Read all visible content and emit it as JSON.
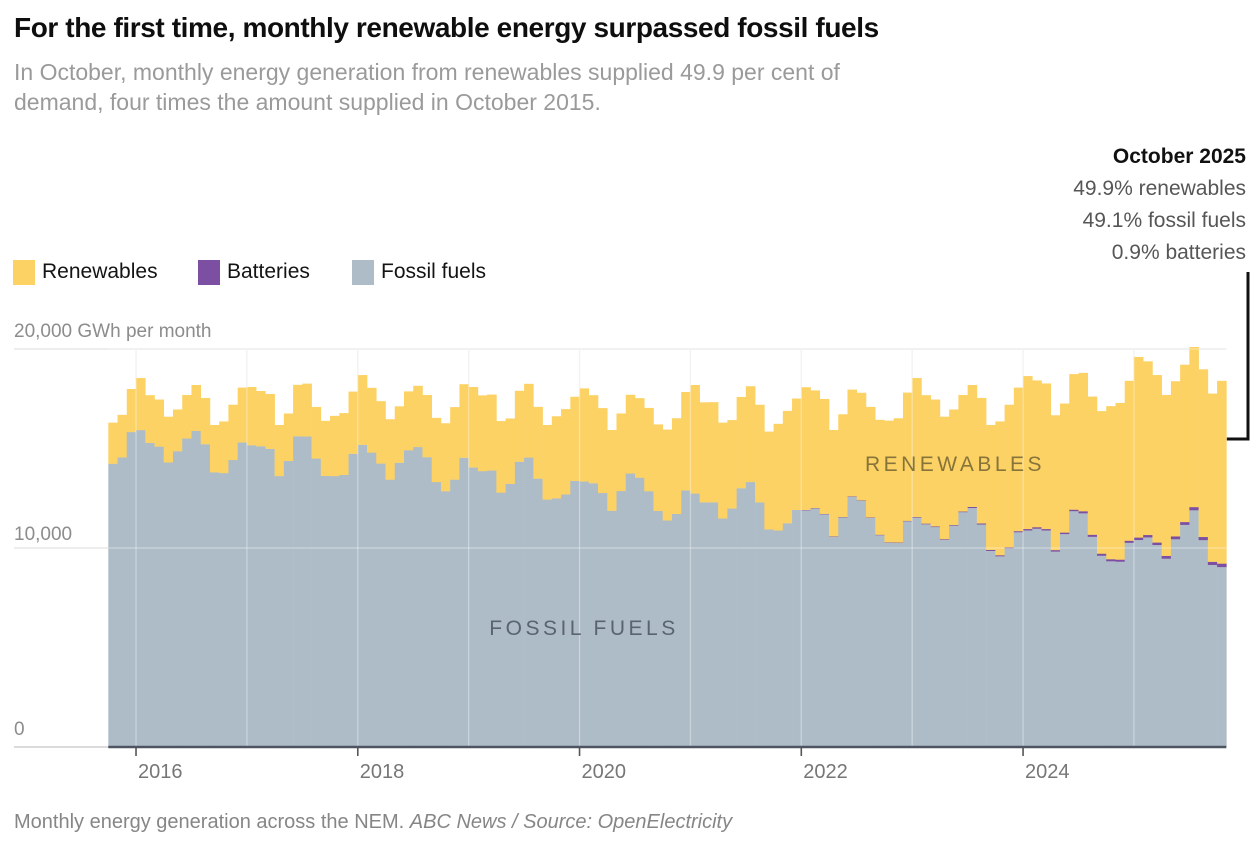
{
  "header": {
    "title": "For the first time, monthly renewable energy surpassed fossil fuels",
    "subtitle_lines": [
      "In October, monthly energy generation from renewables supplied 49.9 per cent of",
      "demand, four times the amount supplied in October 2015."
    ]
  },
  "annotation": {
    "title": "October 2025",
    "lines": [
      "49.9% renewables",
      "49.1% fossil fuels",
      "0.9% batteries"
    ]
  },
  "legend": [
    {
      "label": "Renewables",
      "color": "#fcd265"
    },
    {
      "label": "Batteries",
      "color": "#7d4fa3"
    },
    {
      "label": "Fossil fuels",
      "color": "#aebcc8"
    }
  ],
  "footer": {
    "caption": "Monthly energy generation across the NEM. ",
    "credit": "ABC News / Source: OpenElectricity"
  },
  "chart_data": {
    "type": "bar",
    "stacked": true,
    "x_range": {
      "start": "2015-10",
      "end": "2025-10",
      "months": 121
    },
    "x_ticks": [
      "2016",
      "2018",
      "2020",
      "2022",
      "2024"
    ],
    "y_axis": {
      "top_label": "20,000 GWh per month",
      "mid_label": "10,000",
      "zero_label": "0",
      "gridline_values": [
        20000,
        10000
      ],
      "ylim": [
        0,
        20500
      ]
    },
    "inner_labels": [
      {
        "text": "RENEWABLES",
        "color": "#87743a"
      },
      {
        "text": "FOSSIL FUELS",
        "color": "#5a6470"
      }
    ],
    "series": [
      {
        "name": "Fossil fuels",
        "color": "#aebcc8",
        "values": [
          14240,
          14560,
          15830,
          15930,
          15290,
          15100,
          14310,
          14870,
          15510,
          15890,
          15220,
          13810,
          13770,
          14430,
          15310,
          15170,
          15120,
          14990,
          13620,
          14380,
          15620,
          15610,
          14500,
          13630,
          13620,
          13680,
          14740,
          15190,
          14800,
          14250,
          13440,
          14290,
          14920,
          15080,
          14570,
          13320,
          12860,
          13440,
          14540,
          14050,
          13870,
          13900,
          12790,
          13230,
          14340,
          14550,
          13490,
          12440,
          12500,
          12700,
          13380,
          13350,
          13260,
          12770,
          11880,
          12870,
          13750,
          13540,
          12860,
          11870,
          11390,
          11720,
          12900,
          12740,
          12300,
          12300,
          11490,
          11990,
          13010,
          13320,
          12300,
          10940,
          10890,
          11250,
          11920,
          11900,
          11990,
          11700,
          10570,
          11540,
          12580,
          12380,
          11520,
          10650,
          10270,
          10260,
          11350,
          11530,
          11200,
          11060,
          10420,
          11130,
          11810,
          12020,
          11190,
          9860,
          9590,
          9990,
          10800,
          10890,
          10980,
          10890,
          9830,
          10710,
          11860,
          11750,
          10570,
          9620,
          9340,
          9320,
          10270,
          10410,
          10540,
          10160,
          9470,
          10450,
          11170,
          11905,
          10405,
          9155,
          9050
        ]
      },
      {
        "name": "Batteries",
        "color": "#7d4fa3",
        "values": [
          0,
          0,
          0,
          0,
          0,
          0,
          0,
          0,
          0,
          0,
          0,
          0,
          0,
          0,
          0,
          0,
          0,
          0,
          0,
          0,
          0,
          0,
          0,
          0,
          0,
          0,
          0,
          0,
          0,
          0,
          0,
          0,
          0,
          0,
          0,
          0,
          0,
          0,
          0,
          0,
          0,
          0,
          0,
          0,
          0,
          0,
          0,
          0,
          0,
          0,
          0,
          0,
          0,
          0,
          0,
          0,
          0,
          0,
          0,
          0,
          0,
          0,
          0,
          0,
          0,
          0,
          0,
          0,
          0,
          0,
          0,
          0,
          0,
          0,
          0,
          20,
          20,
          20,
          20,
          20,
          20,
          20,
          20,
          20,
          20,
          20,
          20,
          30,
          30,
          30,
          30,
          30,
          30,
          50,
          50,
          50,
          50,
          50,
          50,
          70,
          70,
          70,
          70,
          70,
          70,
          100,
          100,
          100,
          100,
          100,
          100,
          120,
          120,
          120,
          140,
          140,
          140,
          155,
          155,
          155,
          170
        ]
      },
      {
        "name": "Renewables",
        "color": "#fcd265",
        "values": [
          2060,
          2130,
          2160,
          2610,
          2390,
          2360,
          2290,
          2090,
          2180,
          2300,
          2320,
          2370,
          2590,
          2770,
          2750,
          2920,
          2770,
          2750,
          2560,
          2380,
          2580,
          2650,
          2590,
          2760,
          3020,
          3100,
          3120,
          3500,
          3250,
          3130,
          3030,
          2830,
          2950,
          3070,
          3120,
          3220,
          3410,
          3640,
          3690,
          4040,
          3800,
          3810,
          3590,
          3280,
          3560,
          3700,
          3600,
          3740,
          4120,
          4280,
          4220,
          4670,
          4420,
          4260,
          4050,
          3890,
          3950,
          3990,
          4180,
          4340,
          4560,
          4800,
          4940,
          5450,
          5020,
          5030,
          4810,
          4440,
          4580,
          4810,
          4900,
          4910,
          5350,
          5640,
          5590,
          6160,
          5910,
          5770,
          5340,
          5160,
          5360,
          5400,
          5550,
          5770,
          6110,
          6240,
          6440,
          6980,
          6450,
          6370,
          6150,
          5800,
          5850,
          6120,
          6300,
          6270,
          6720,
          7160,
          7210,
          7680,
          7370,
          7310,
          6770,
          6480,
          6810,
          6950,
          6940,
          7160,
          7690,
          7870,
          8030,
          9070,
          8720,
          8410,
          8080,
          7790,
          7900,
          8040,
          8420,
          8450,
          9180
        ]
      }
    ],
    "october_2025": {
      "renewables_pct": 49.9,
      "fossil_pct": 49.1,
      "batteries_pct": 0.9
    }
  }
}
